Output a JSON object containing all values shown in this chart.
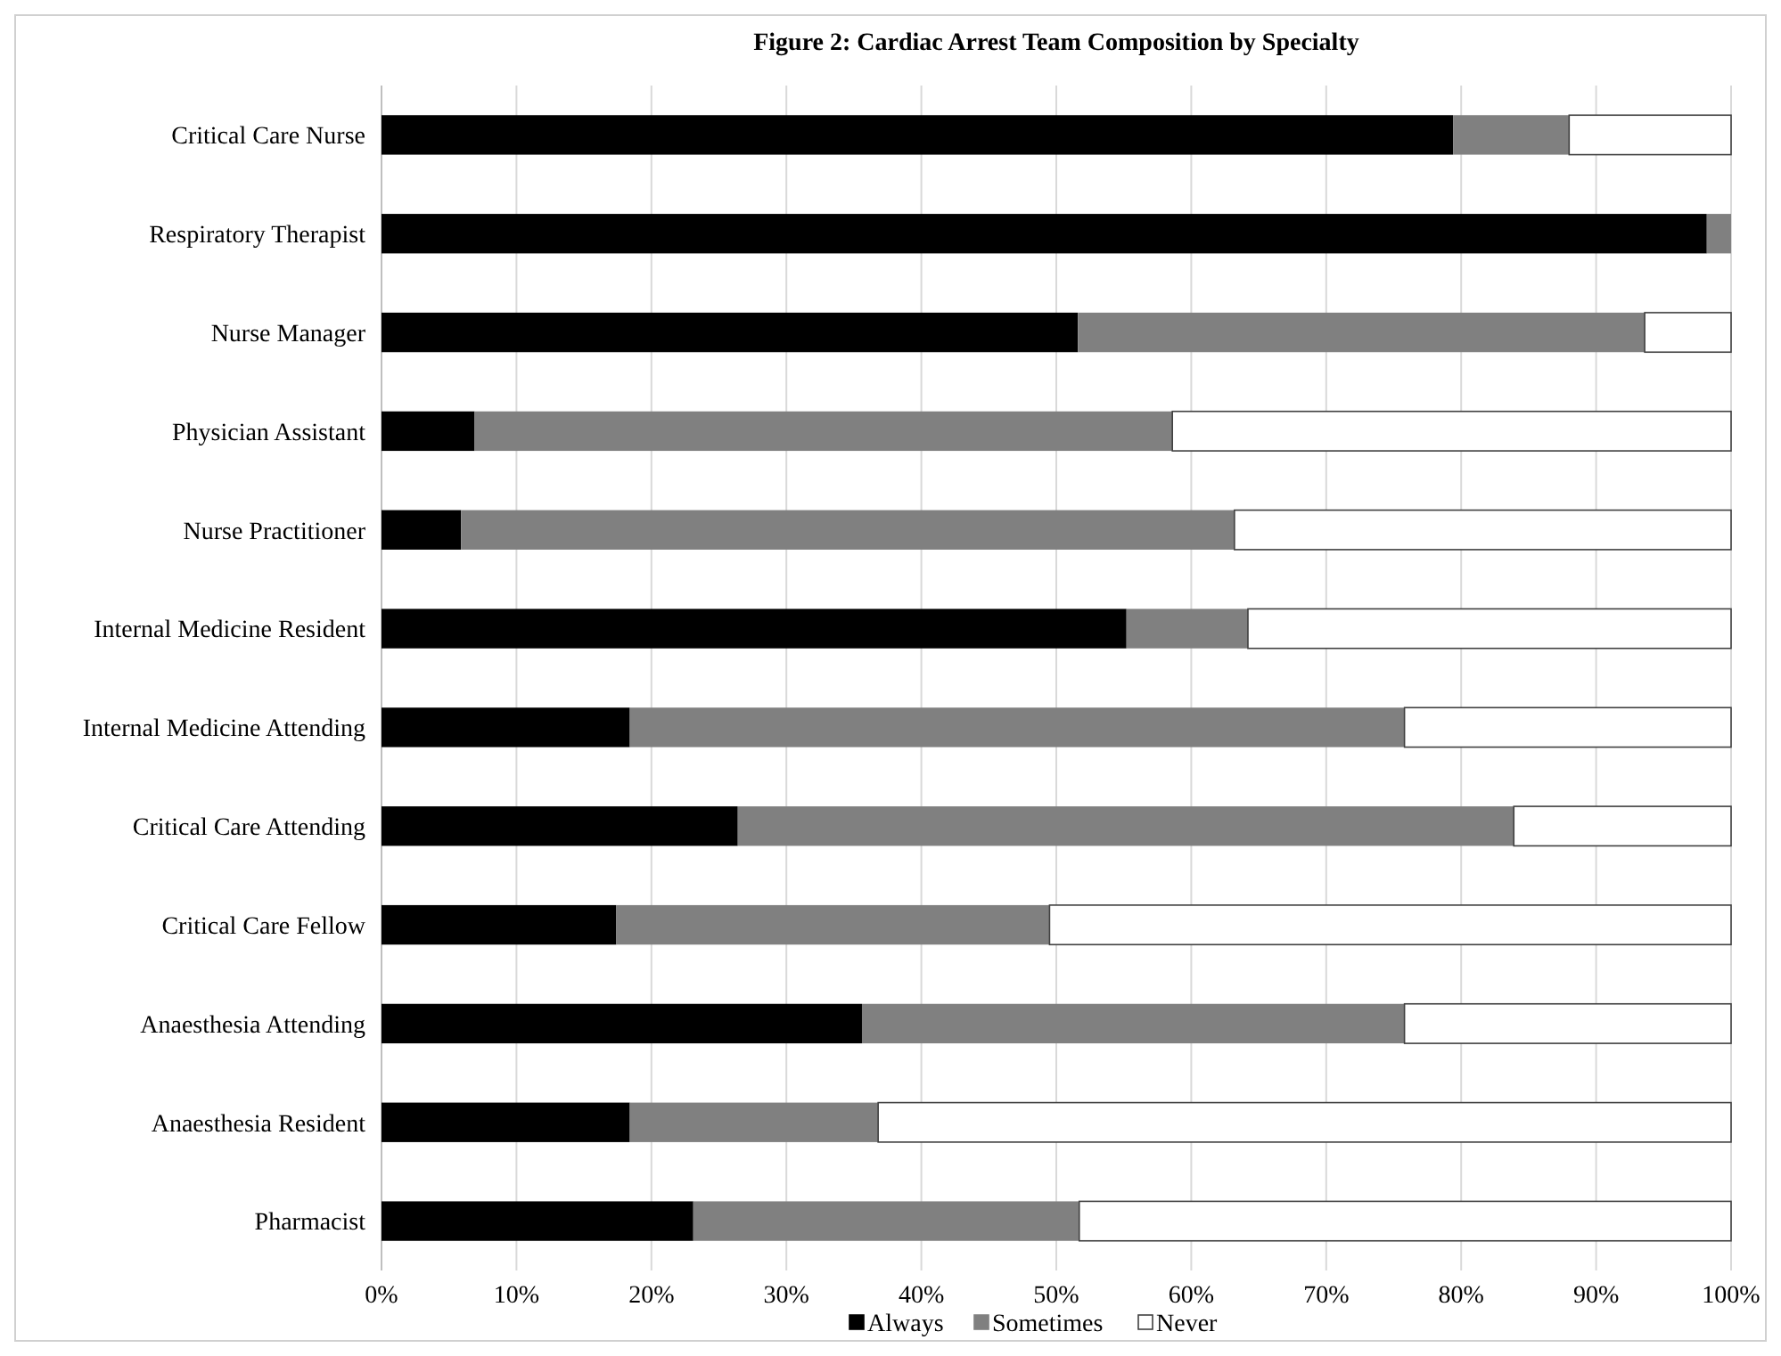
{
  "chart_data": {
    "type": "bar",
    "orientation": "horizontal",
    "stacked": true,
    "title": "Figure 2: Cardiac Arrest Team Composition by Specialty",
    "categories": [
      "Critical Care Nurse",
      "Respiratory Therapist",
      "Nurse Manager",
      "Physician Assistant",
      "Nurse Practitioner",
      "Internal Medicine Resident",
      "Internal Medicine Attending",
      "Critical Care Attending",
      "Critical Care Fellow",
      "Anaesthesia Attending",
      "Anaesthesia Resident",
      "Pharmacist"
    ],
    "series": [
      {
        "name": "Always",
        "color": "#000000",
        "values": [
          79.4,
          98.2,
          51.6,
          6.9,
          5.9,
          55.2,
          18.4,
          26.4,
          17.4,
          35.6,
          18.4,
          23.1
        ]
      },
      {
        "name": "Sometimes",
        "color": "#808080",
        "values": [
          8.6,
          1.8,
          42.0,
          51.7,
          57.3,
          9.0,
          57.4,
          57.5,
          32.1,
          40.2,
          18.4,
          28.6
        ]
      },
      {
        "name": "Never",
        "color": "#ffffff",
        "values": [
          12.0,
          0,
          6.4,
          41.4,
          36.8,
          35.8,
          24.2,
          16.1,
          50.5,
          24.2,
          63.2,
          48.3
        ]
      }
    ],
    "xlim": [
      0,
      100
    ],
    "xticks": [
      {
        "value": 0,
        "label": "0%"
      },
      {
        "value": 10,
        "label": "10%"
      },
      {
        "value": 20,
        "label": "20%"
      },
      {
        "value": 30,
        "label": "30%"
      },
      {
        "value": 40,
        "label": "40%"
      },
      {
        "value": 50,
        "label": "50%"
      },
      {
        "value": 60,
        "label": "60%"
      },
      {
        "value": 70,
        "label": "70%"
      },
      {
        "value": 80,
        "label": "80%"
      },
      {
        "value": 90,
        "label": "90%"
      },
      {
        "value": 100,
        "label": "100%"
      }
    ],
    "grid": "x",
    "legend": "bottom"
  }
}
